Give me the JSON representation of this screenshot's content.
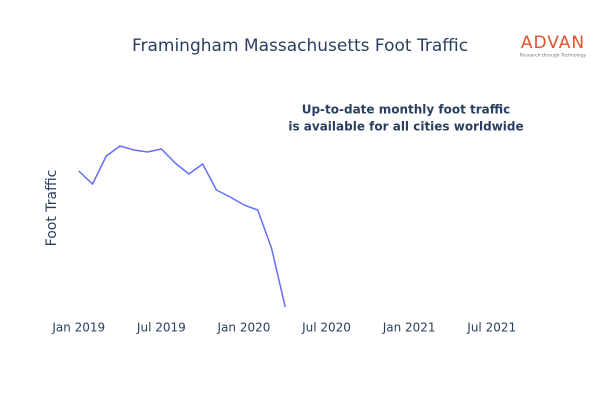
{
  "chart_data": {
    "type": "line",
    "title": "Framingham Massachusetts Foot Traffic",
    "y_label": "Foot Traffic",
    "annotation": [
      "Up-to-date monthly foot traffic",
      "is available for all cities worldwide"
    ],
    "logo": {
      "name": "ADVAN",
      "tagline": "Research through Technology"
    },
    "x": [
      "2019-01",
      "2019-02",
      "2019-03",
      "2019-04",
      "2019-05",
      "2019-06",
      "2019-07",
      "2019-08",
      "2019-09",
      "2019-10",
      "2019-11",
      "2019-12",
      "2020-01",
      "2020-02",
      "2020-03",
      "2020-04"
    ],
    "series": [
      {
        "name": "Foot Traffic",
        "color": "#636efa",
        "values": [
          149,
          136,
          164,
          174,
          170,
          168,
          171,
          157,
          146,
          156,
          130,
          123,
          115,
          110,
          72,
          13
        ]
      }
    ],
    "xlim": [
      "2018-12",
      "2021-10"
    ],
    "xticks": [
      {
        "value": "2019-01",
        "label": "Jan 2019"
      },
      {
        "value": "2019-07",
        "label": "Jul 2019"
      },
      {
        "value": "2020-01",
        "label": "Jan 2020"
      },
      {
        "value": "2020-07",
        "label": "Jul 2020"
      },
      {
        "value": "2021-01",
        "label": "Jan 2021"
      },
      {
        "value": "2021-07",
        "label": "Jul 2021"
      }
    ],
    "ylim": [
      0,
      200
    ]
  }
}
